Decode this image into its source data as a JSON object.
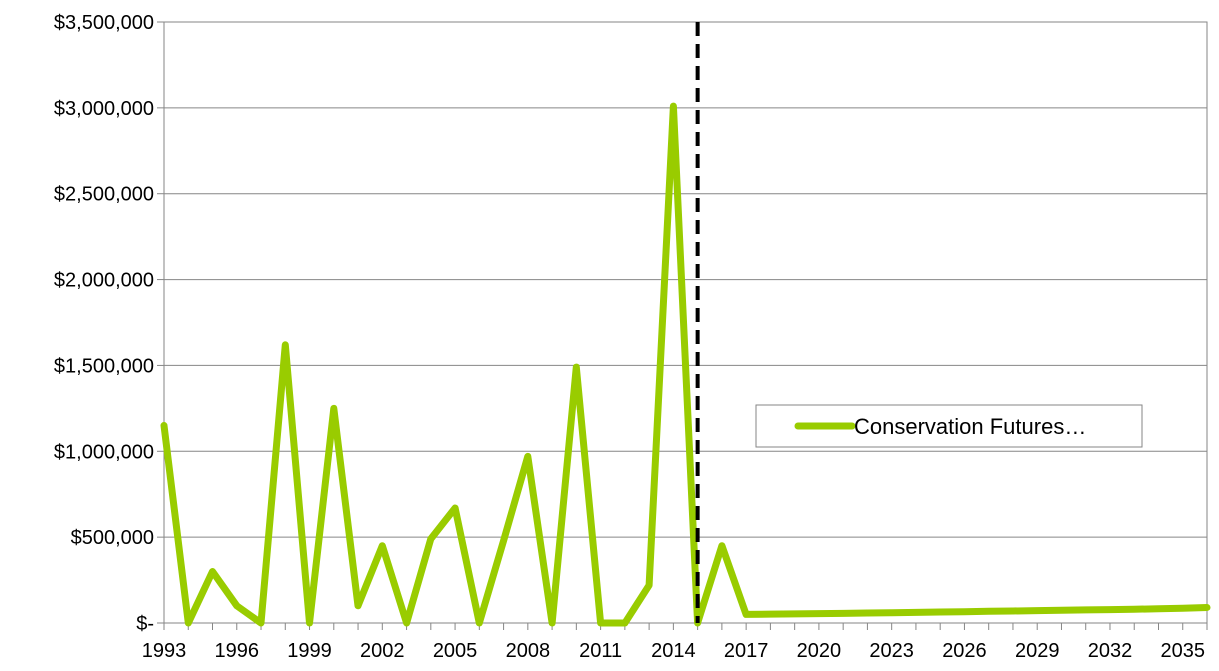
{
  "chart_data": {
    "type": "line",
    "y_tick_labels": [
      "$-",
      "$500,000",
      "$1,000,000",
      "$1,500,000",
      "$2,000,000",
      "$2,500,000",
      "$3,000,000",
      "$3,500,000"
    ],
    "y_tick_values": [
      0,
      500000,
      1000000,
      1500000,
      2000000,
      2500000,
      3000000,
      3500000
    ],
    "ylim": [
      0,
      3500000
    ],
    "x_tick_labels": [
      "1993",
      "1996",
      "1999",
      "2002",
      "2005",
      "2008",
      "2011",
      "2014",
      "2017",
      "2020",
      "2023",
      "2026",
      "2029",
      "2032",
      "2035"
    ],
    "x_tick_values": [
      1993,
      1996,
      1999,
      2002,
      2005,
      2008,
      2011,
      2014,
      2017,
      2020,
      2023,
      2026,
      2029,
      2032,
      2035
    ],
    "xlim": [
      1993,
      2036
    ],
    "grid": true,
    "legend_position": "right",
    "divider_year": 2015,
    "series": [
      {
        "name": "Conservation Futures…",
        "color": "#99cc00",
        "x": [
          1993,
          1994,
          1995,
          1996,
          1997,
          1998,
          1999,
          2000,
          2001,
          2002,
          2003,
          2004,
          2005,
          2006,
          2007,
          2008,
          2009,
          2010,
          2011,
          2012,
          2013,
          2014,
          2015,
          2016,
          2017,
          2018,
          2019,
          2020,
          2021,
          2022,
          2023,
          2024,
          2025,
          2026,
          2027,
          2028,
          2029,
          2030,
          2031,
          2032,
          2033,
          2034,
          2035,
          2036
        ],
        "values": [
          1150000,
          0,
          300000,
          100000,
          0,
          1620000,
          0,
          1250000,
          100000,
          450000,
          0,
          490000,
          670000,
          0,
          480000,
          970000,
          0,
          1490000,
          0,
          0,
          220000,
          3010000,
          0,
          450000,
          50000,
          52000,
          53000,
          55000,
          56000,
          58000,
          60000,
          62000,
          64000,
          66000,
          68000,
          70000,
          72000,
          74000,
          76000,
          78000,
          80000,
          83000,
          86000,
          90000
        ]
      }
    ]
  }
}
